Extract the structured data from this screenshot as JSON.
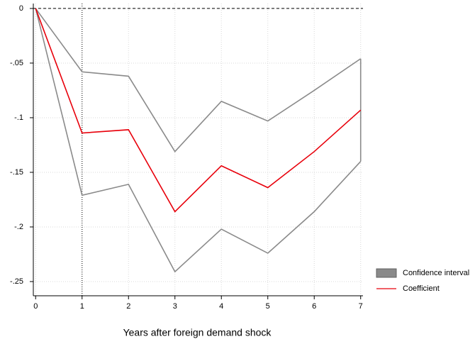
{
  "chart_data": {
    "type": "line",
    "x_label": "Years after foreign demand shock",
    "x": [
      0,
      1,
      2,
      3,
      4,
      5,
      6,
      7
    ],
    "series": [
      {
        "name": "Confidence interval",
        "color": "#8a8a8a",
        "kind": "range",
        "upper": [
          0,
          -0.058,
          -0.062,
          -0.131,
          -0.085,
          -0.103,
          -0.075,
          -0.046
        ],
        "lower": [
          0,
          -0.171,
          -0.161,
          -0.241,
          -0.202,
          -0.224,
          -0.186,
          -0.14
        ]
      },
      {
        "name": "Coefficient",
        "color": "#e8000b",
        "values": [
          0,
          -0.114,
          -0.111,
          -0.186,
          -0.144,
          -0.164,
          -0.131,
          -0.093
        ]
      }
    ],
    "xlim": [
      -0.05,
      7.05
    ],
    "xticks": [
      0,
      1,
      2,
      3,
      4,
      5,
      6,
      7
    ],
    "ylim": [
      -0.263,
      0.0045
    ],
    "yticks": [
      0,
      {
        "value": -0.05,
        "label": "-.05"
      },
      {
        "value": -0.1,
        "label": "-.1"
      },
      {
        "value": -0.15,
        "label": "-.15"
      },
      {
        "value": -0.2,
        "label": "-.2"
      },
      {
        "value": -0.25,
        "label": "-.25"
      }
    ],
    "grid": true,
    "hline": 0,
    "vline": 1,
    "legend": "right"
  }
}
